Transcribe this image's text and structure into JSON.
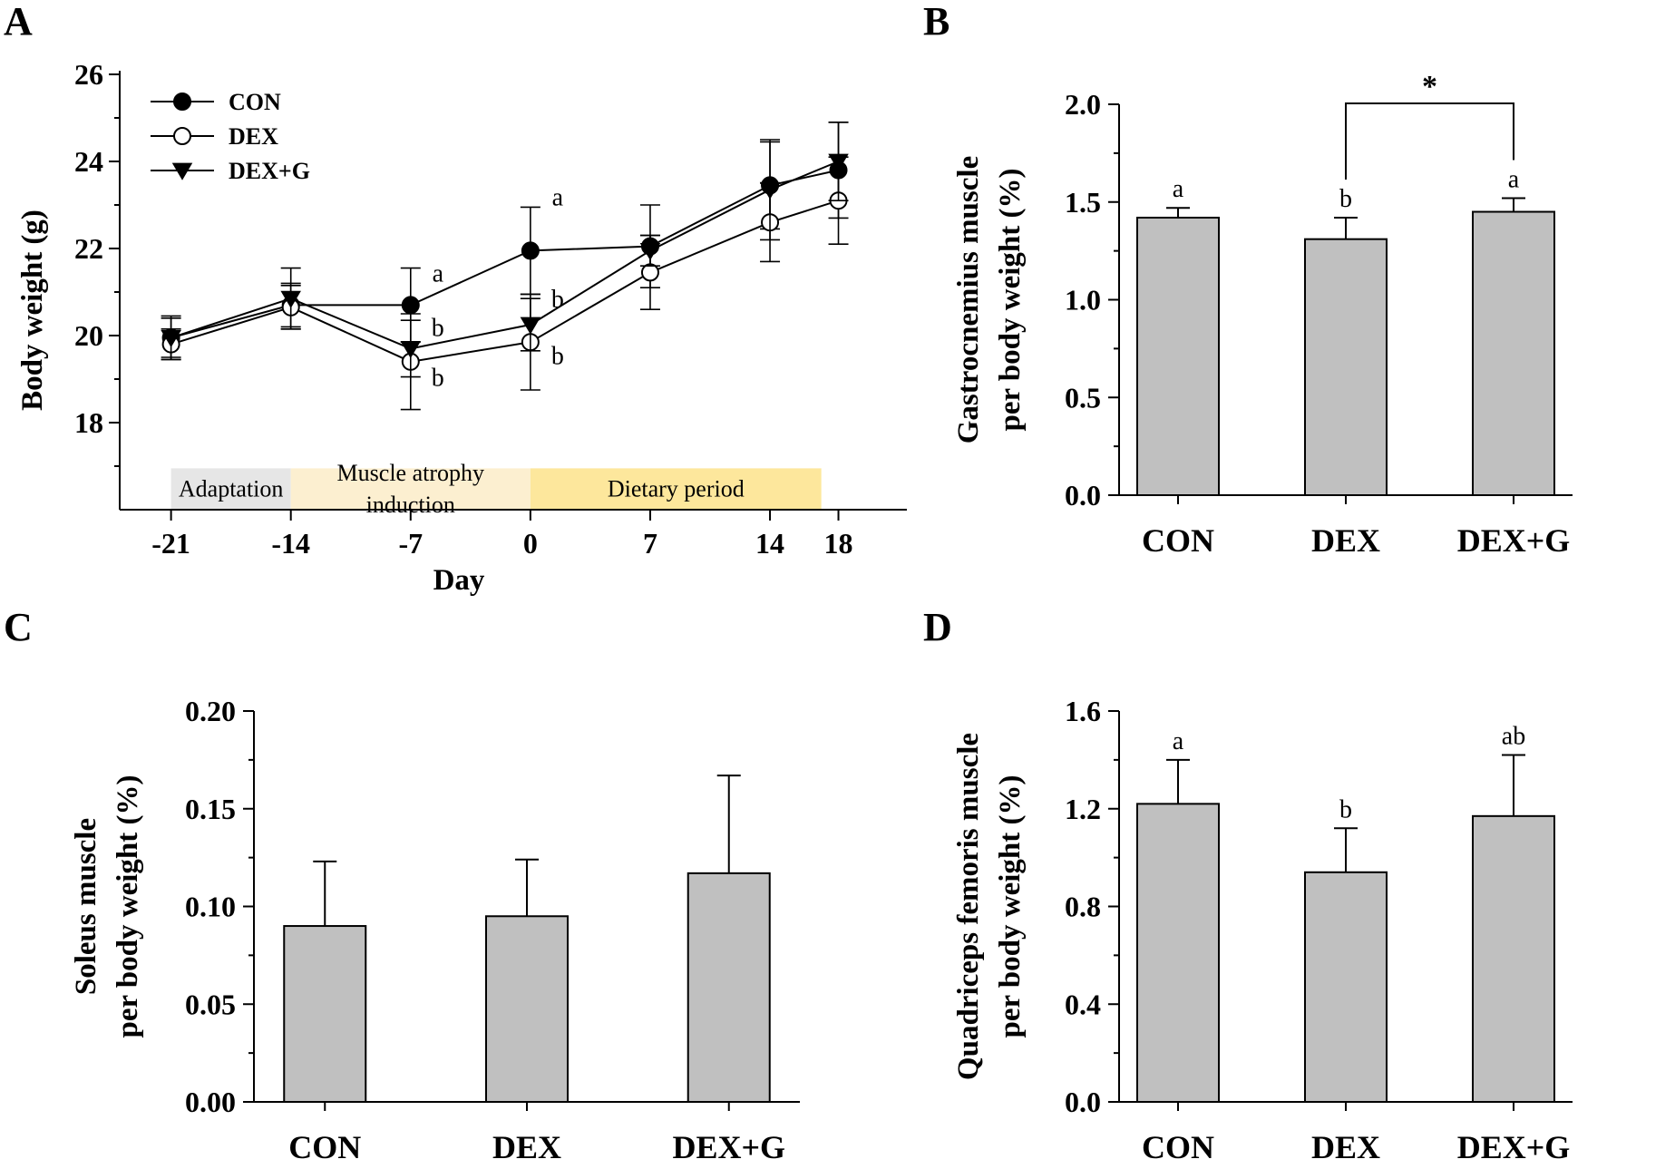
{
  "chart_data": [
    {
      "panel": "A",
      "type": "line",
      "xlabel": "Day",
      "ylabel": "Body weight (g)",
      "xlim": [
        -24,
        22
      ],
      "ylim": [
        16,
        26
      ],
      "xticks": [
        -21,
        -14,
        -7,
        0,
        7,
        14,
        18
      ],
      "yticks": [
        18,
        20,
        22,
        24,
        26
      ],
      "x": [
        -21,
        -14,
        -7,
        0,
        7,
        14,
        18
      ],
      "legend_position": "top-left",
      "series": [
        {
          "name": "CON",
          "marker": "filled-circle",
          "values": [
            19.95,
            20.7,
            20.7,
            21.95,
            22.05,
            23.45,
            23.8
          ],
          "errors": [
            0.5,
            0.5,
            0.85,
            1.0,
            0.95,
            1.0,
            1.1
          ]
        },
        {
          "name": "DEX",
          "marker": "open-circle",
          "values": [
            19.8,
            20.65,
            19.4,
            19.85,
            21.45,
            22.6,
            23.1
          ],
          "errors": [
            0.35,
            0.5,
            1.1,
            1.1,
            0.85,
            0.9,
            1.0
          ]
        },
        {
          "name": "DEX+G",
          "marker": "filled-triangle-down",
          "values": [
            19.95,
            20.85,
            19.7,
            20.25,
            21.95,
            23.35,
            24.0
          ],
          "errors": [
            0.45,
            0.7,
            0.65,
            0.6,
            0.35,
            1.15,
            0.9
          ]
        }
      ],
      "annotations": [
        {
          "text": "a",
          "x": -7,
          "y": 21.45
        },
        {
          "text": "b",
          "x": -7,
          "y": 20.2
        },
        {
          "text": "b",
          "x": -7,
          "y": 19.05
        },
        {
          "text": "a",
          "x": 0,
          "y": 23.2
        },
        {
          "text": "b",
          "x": 0,
          "y": 20.85
        },
        {
          "text": "b",
          "x": 0,
          "y": 19.55
        }
      ],
      "phases": [
        {
          "label": "Adaptation",
          "label_lines": [
            "Adaptation"
          ],
          "start": -21,
          "end": -14,
          "color": "#e6e6e6"
        },
        {
          "label": "Muscle atrophy induction",
          "label_lines": [
            "Muscle atrophy",
            "induction"
          ],
          "start": -14,
          "end": 0,
          "color": "#fcefd0"
        },
        {
          "label": "Dietary period",
          "label_lines": [
            "Dietary period"
          ],
          "start": 0,
          "end": 17,
          "color": "#fde79c"
        }
      ]
    },
    {
      "panel": "B",
      "type": "bar",
      "categories": [
        "CON",
        "DEX",
        "DEX+G"
      ],
      "values": [
        1.42,
        1.31,
        1.45
      ],
      "errors": [
        0.05,
        0.11,
        0.07
      ],
      "letters": [
        "a",
        "b",
        "a"
      ],
      "ylabel_lines": [
        "Gastrocnemius muscle",
        "per body weight (%)"
      ],
      "ylim": [
        0.0,
        2.0
      ],
      "yticks": [
        "0.0",
        "0.5",
        "1.0",
        "1.5",
        "2.0"
      ],
      "bracket": {
        "from": "DEX",
        "to": "DEX+G",
        "label": "*"
      }
    },
    {
      "panel": "C",
      "type": "bar",
      "categories": [
        "CON",
        "DEX",
        "DEX+G"
      ],
      "values": [
        0.09,
        0.095,
        0.117
      ],
      "errors": [
        0.033,
        0.029,
        0.05
      ],
      "letters": [],
      "ylabel_lines": [
        "Soleus muscle",
        "per body weight (%)"
      ],
      "ylim": [
        0.0,
        0.2
      ],
      "yticks": [
        "0.00",
        "0.05",
        "0.10",
        "0.15",
        "0.20"
      ]
    },
    {
      "panel": "D",
      "type": "bar",
      "categories": [
        "CON",
        "DEX",
        "DEX+G"
      ],
      "values": [
        1.22,
        0.94,
        1.17
      ],
      "errors": [
        0.18,
        0.18,
        0.25
      ],
      "letters": [
        "a",
        "b",
        "ab"
      ],
      "ylabel_lines": [
        "Quadriceps femoris muscle",
        "per body weight (%)"
      ],
      "ylim": [
        0.0,
        1.6
      ],
      "yticks": [
        "0.0",
        "0.4",
        "0.8",
        "1.2",
        "1.6"
      ]
    }
  ],
  "colors": {
    "bar_fill": "#c0c0c0",
    "line": "#000000"
  }
}
